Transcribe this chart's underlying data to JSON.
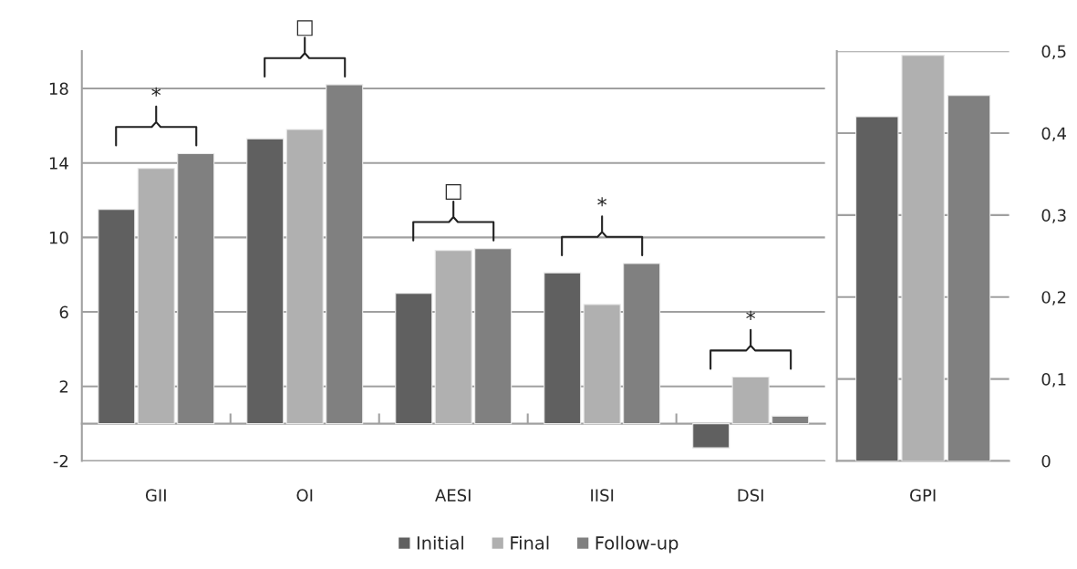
{
  "chart_data": [
    {
      "type": "bar",
      "categories": [
        "GII",
        "OI",
        "AESI",
        "IISI",
        "DSI"
      ],
      "series": [
        {
          "name": "Initial",
          "color": "#606060",
          "values": [
            11.5,
            15.3,
            7.0,
            8.1,
            -1.3
          ]
        },
        {
          "name": "Final",
          "color": "#b0b0b0",
          "values": [
            13.7,
            15.8,
            9.3,
            6.4,
            2.5
          ]
        },
        {
          "name": "Follow-up",
          "color": "#808080",
          "values": [
            14.5,
            18.2,
            9.4,
            8.6,
            0.4
          ]
        }
      ],
      "ylim": [
        -2,
        20
      ],
      "yticks": [
        -2,
        2,
        6,
        10,
        14,
        18
      ],
      "grid": "y",
      "legend": "bottom",
      "annotations": [
        "*",
        "□",
        "□",
        "*",
        "*"
      ]
    },
    {
      "type": "bar",
      "categories": [
        "GPI"
      ],
      "series": [
        {
          "color": "#606060",
          "values": [
            0.42
          ]
        },
        {
          "color": "#b0b0b0",
          "values": [
            0.495
          ]
        },
        {
          "color": "#808080",
          "values": [
            0.446
          ]
        }
      ],
      "ylim": [
        0,
        0.5
      ],
      "yticks": [
        0,
        {
          "value": 0.1,
          "label": "0,1"
        },
        {
          "value": 0.2,
          "label": "0,2"
        },
        {
          "value": 0.3,
          "label": "0,3"
        },
        {
          "value": 0.4,
          "label": "0,4"
        },
        {
          "value": 0.5,
          "label": "0,5"
        }
      ],
      "grid": "y"
    }
  ]
}
